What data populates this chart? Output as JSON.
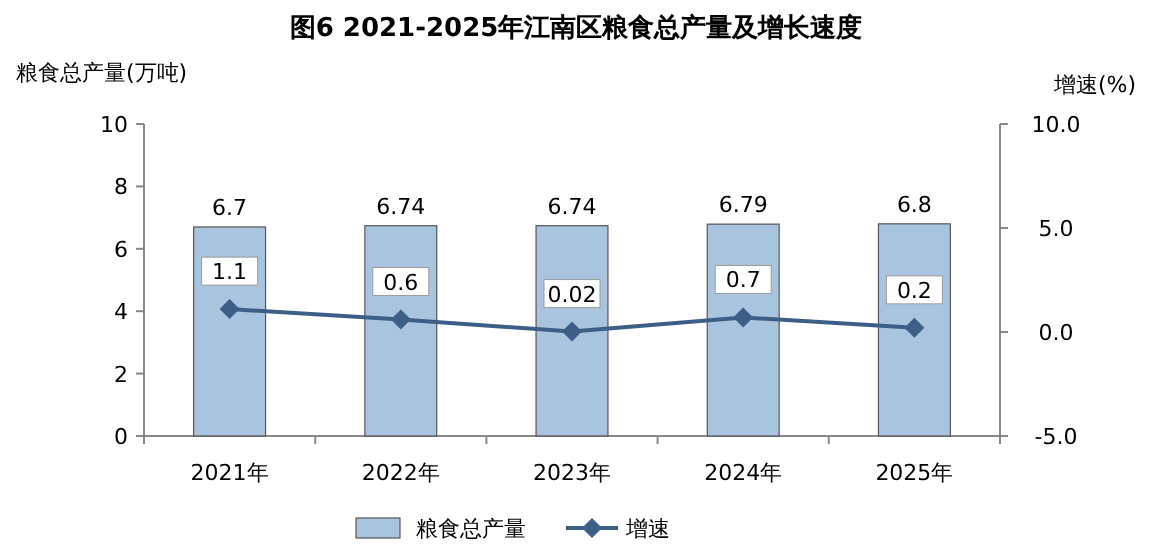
{
  "chart_data": {
    "type": "bar",
    "title": "图6  2021-2025年江南区粮食总产量及增长速度",
    "ylabel": "粮食总产量(万吨)",
    "y2label": "增速(%)",
    "categories": [
      "2021年",
      "2022年",
      "2023年",
      "2024年",
      "2025年"
    ],
    "series": [
      {
        "name": "粮食总产量",
        "color": "#a9c4de",
        "values": [
          6.7,
          6.74,
          6.74,
          6.79,
          6.8
        ]
      },
      {
        "name": "增速",
        "type": "line",
        "axis": "y2",
        "color": "#3d5f87",
        "marker": "diamond",
        "values": [
          1.1,
          0.6,
          0.02,
          0.7,
          0.2
        ]
      }
    ],
    "ylim": [
      0,
      10
    ],
    "yticks": [
      0,
      2,
      4,
      6,
      8,
      10
    ],
    "y2lim": [
      -5,
      10
    ],
    "y2ticks": [
      {
        "value": -5,
        "label": "-5.0"
      },
      {
        "value": 0,
        "label": "0.0"
      },
      {
        "value": 5,
        "label": "5.0"
      },
      {
        "value": 10,
        "label": "10.0"
      }
    ],
    "data_labels": true,
    "legend": "bottom",
    "grid": false
  }
}
